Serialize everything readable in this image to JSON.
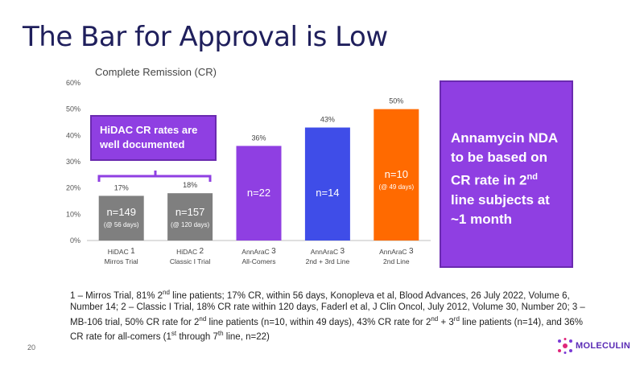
{
  "slide_title": "The Bar for Approval is Low",
  "chart_data": {
    "type": "bar",
    "title": "Complete Remission (CR)",
    "ylim": [
      0,
      60
    ],
    "yticks": [
      "0%",
      "10%",
      "20%",
      "30%",
      "40%",
      "50%",
      "60%"
    ],
    "categories": [
      {
        "line1": "HiDAC",
        "sup": "1",
        "line2": "Mirros Trial"
      },
      {
        "line1": "HiDAC",
        "sup": "2",
        "line2": "Classic I Trial"
      },
      {
        "line1": "AnnAraC",
        "sup": "3",
        "line2": "All-Comers"
      },
      {
        "line1": "AnnAraC",
        "sup": "3",
        "line2": "2nd + 3rd Line"
      },
      {
        "line1": "AnnAraC",
        "sup": "3",
        "line2": "2nd Line"
      }
    ],
    "values": [
      17,
      18,
      36,
      43,
      50
    ],
    "value_labels": [
      "17%",
      "18%",
      "36%",
      "43%",
      "50%"
    ],
    "n_labels": [
      "n=149",
      "n=157",
      "n=22",
      "n=14",
      "n=10"
    ],
    "duration_labels": [
      "(@ 56 days)",
      "(@ 120 days)",
      "",
      "",
      "(@ 49 days)"
    ],
    "colors": [
      "#7f7f7f",
      "#7f7f7f",
      "#8f3fe2",
      "#3f4de8",
      "#ff6a00"
    ]
  },
  "callout_left": "HiDAC CR rates are well documented",
  "callout_right": {
    "line1": "Annamycin NDA to be based on CR rate in 2",
    "sup": "nd",
    "line2": " line subjects at ~1 month"
  },
  "footnote": {
    "p1": "1 – Mirros Trial, 81% 2",
    "s1": "nd",
    "p2": " line patients; 17% CR, within 56 days, Konopleva et al, Blood Advances, 26 July 2022, Volume 6, Number 14; 2 – Classic I Trial, 18% CR rate within 120 days, Faderl et al, J Clin Oncol, July 2012, Volume 30, Number 20; 3 – MB-106 trial, 50% CR rate for 2",
    "s2": "nd",
    "p3": " line patients (n=10, within 49 days), 43% CR rate for 2",
    "s3": "nd",
    "p4": " + 3",
    "s4": "rd",
    "p5": " line patients  (n=14), and 36% CR rate for all-comers (1",
    "s5": "st",
    "p6": " through 7",
    "s6": "th",
    "p7": " line, n=22)"
  },
  "page_number": "20",
  "logo_text": "MOLECULIN",
  "colors": {
    "title": "#1f1f5c",
    "purple": "#8f3fe2",
    "blue": "#3f4de8",
    "orange": "#ff6a00",
    "gray": "#7f7f7f"
  }
}
